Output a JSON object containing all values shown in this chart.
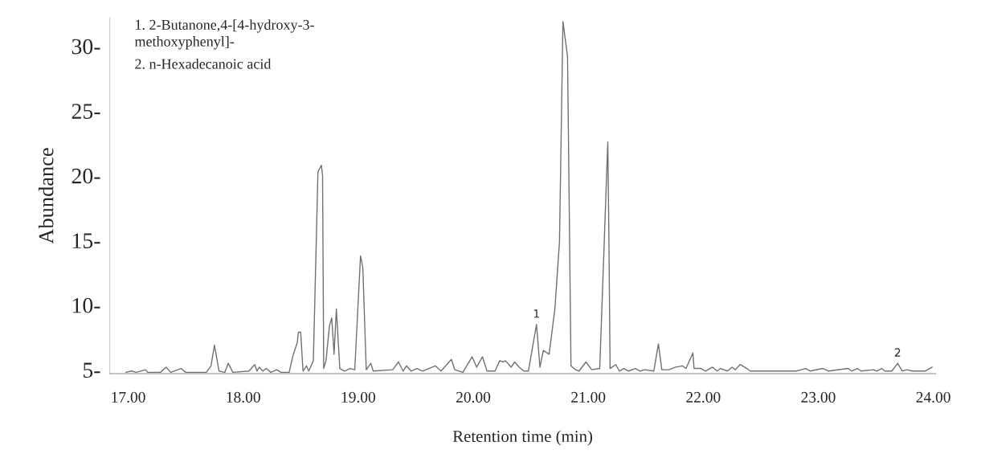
{
  "chart_data": {
    "type": "line",
    "xlabel": "Retention time (min)",
    "ylabel": "Abundance",
    "annotations": [
      "1. 2-Butanone,4-[4-hydroxy-3-\nmethoxyphenyl]-",
      "2. n-Hexadecanoic acid",
      {
        "text": "1",
        "x": 20.55,
        "y": 8.5
      },
      {
        "text": "2",
        "x": 23.69,
        "y": 5.5
      }
    ],
    "series": [
      {
        "color": "#707070",
        "x": [
          16.98,
          17.03,
          17.07,
          17.15,
          17.17,
          17.28,
          17.33,
          17.37,
          17.46,
          17.5,
          17.68,
          17.72,
          17.75,
          17.79,
          17.84,
          17.87,
          17.91,
          18.05,
          18.1,
          18.12,
          18.14,
          18.17,
          18.2,
          18.24,
          18.29,
          18.33,
          18.4,
          18.43,
          18.47,
          18.48,
          18.5,
          18.52,
          18.55,
          18.57,
          18.61,
          18.65,
          18.68,
          18.69,
          18.7,
          18.72,
          18.75,
          18.77,
          18.79,
          18.81,
          18.84,
          18.88,
          18.93,
          18.97,
          19.02,
          19.04,
          19.07,
          19.11,
          19.13,
          19.3,
          19.35,
          19.39,
          19.42,
          19.46,
          19.51,
          19.56,
          19.67,
          19.72,
          19.81,
          19.84,
          19.91,
          19.99,
          20.03,
          20.08,
          20.12,
          20.19,
          20.23,
          20.26,
          20.28,
          20.33,
          20.36,
          20.4,
          20.44,
          20.48,
          20.55,
          20.58,
          20.61,
          20.66,
          20.71,
          20.75,
          20.77,
          20.78,
          20.82,
          20.85,
          20.89,
          20.92,
          20.98,
          21.03,
          21.1,
          21.17,
          21.18,
          21.19,
          21.24,
          21.27,
          21.31,
          21.35,
          21.41,
          21.45,
          21.49,
          21.57,
          21.61,
          21.64,
          21.7,
          21.76,
          21.82,
          21.85,
          21.91,
          21.92,
          21.98,
          22.02,
          22.08,
          22.12,
          22.15,
          22.21,
          22.25,
          22.28,
          22.32,
          22.36,
          22.41,
          22.63,
          22.81,
          22.89,
          22.93,
          23.04,
          23.09,
          23.26,
          23.29,
          23.34,
          23.37,
          23.48,
          23.51,
          23.55,
          23.58,
          23.64,
          23.69,
          23.73,
          23.77,
          23.82,
          23.93,
          23.99
        ],
        "values": [
          4.8,
          4.9,
          4.8,
          5.0,
          4.8,
          4.8,
          5.2,
          4.8,
          5.1,
          4.8,
          4.8,
          5.3,
          6.9,
          4.9,
          4.8,
          5.5,
          4.8,
          4.9,
          5.4,
          4.9,
          5.2,
          4.9,
          5.1,
          4.8,
          5.0,
          4.8,
          4.8,
          6.0,
          7.1,
          7.9,
          7.9,
          4.9,
          5.3,
          4.9,
          5.7,
          20.3,
          20.8,
          20.0,
          5.1,
          5.7,
          8.4,
          9.0,
          6.2,
          9.7,
          5.1,
          4.9,
          5.1,
          5.0,
          13.8,
          12.9,
          5.0,
          5.5,
          4.9,
          5.0,
          5.6,
          4.9,
          5.3,
          4.9,
          5.1,
          4.9,
          5.3,
          4.9,
          5.8,
          5.0,
          4.8,
          6.0,
          5.2,
          6.0,
          4.9,
          4.9,
          5.7,
          5.6,
          5.7,
          5.2,
          5.6,
          5.2,
          4.9,
          4.9,
          8.5,
          5.2,
          6.5,
          6.2,
          9.7,
          14.9,
          26.2,
          31.9,
          29.2,
          5.3,
          5.0,
          4.9,
          5.6,
          5.0,
          5.1,
          22.6,
          14.9,
          5.1,
          5.4,
          4.9,
          5.1,
          4.9,
          5.1,
          4.9,
          5.0,
          4.9,
          7.0,
          5.0,
          5.0,
          5.2,
          5.3,
          5.1,
          6.3,
          5.1,
          5.1,
          4.9,
          5.2,
          4.9,
          5.1,
          4.9,
          5.2,
          5.0,
          5.4,
          5.2,
          4.9,
          4.9,
          4.9,
          5.1,
          4.9,
          5.1,
          4.9,
          5.1,
          4.9,
          5.1,
          4.9,
          5.0,
          4.9,
          5.1,
          4.9,
          4.9,
          5.5,
          4.9,
          5.0,
          4.9,
          4.9,
          5.2
        ]
      }
    ],
    "xlim": [
      16.84,
      24.02
    ],
    "ylim": [
      4.7,
      32.2
    ],
    "xticks": [
      {
        "value": 17,
        "label": "17.00"
      },
      {
        "value": 18,
        "label": "18.00"
      },
      {
        "value": 19,
        "label": "19.00"
      },
      {
        "value": 20,
        "label": "20.00"
      },
      {
        "value": 21,
        "label": "21.00"
      },
      {
        "value": 22,
        "label": "22.00"
      },
      {
        "value": 23,
        "label": "23.00"
      },
      {
        "value": 24,
        "label": "24.00"
      }
    ],
    "yticks": [
      {
        "value": 5,
        "label": "5-"
      },
      {
        "value": 10,
        "label": "10-"
      },
      {
        "value": 15,
        "label": "15-"
      },
      {
        "value": 20,
        "label": "20-"
      },
      {
        "value": 25,
        "label": "25-"
      },
      {
        "value": 30,
        "label": "30-"
      }
    ],
    "grid": false,
    "marker": "none",
    "line_style": "solid"
  }
}
